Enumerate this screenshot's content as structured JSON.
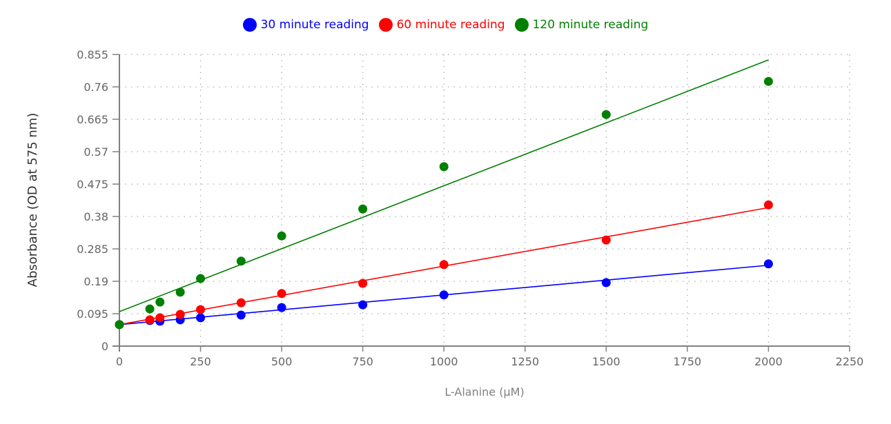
{
  "chart_data": {
    "type": "scatter",
    "title": "",
    "xlabel": "L-Alanine (µM)",
    "ylabel": "Absorbance (OD at 575 nm)",
    "xlim": [
      0,
      2250
    ],
    "ylim": [
      0,
      0.855
    ],
    "xticks": [
      0,
      250,
      500,
      750,
      1000,
      1250,
      1500,
      1750,
      2000,
      2250
    ],
    "yticks": [
      0,
      0.095,
      0.19,
      0.285,
      0.38,
      0.475,
      0.57,
      0.665,
      0.76,
      0.855
    ],
    "xtick_labels": [
      "0",
      "250",
      "500",
      "750",
      "1000",
      "1250",
      "1500",
      "1750",
      "2000",
      "2250"
    ],
    "ytick_labels": [
      "0",
      "0.095",
      "0.19",
      "0.285",
      "0.38",
      "0.475",
      "0.57",
      "0.665",
      "0.76",
      "0.855"
    ],
    "grid": true,
    "legend_position": "top",
    "x": [
      0,
      93.75,
      125,
      187.5,
      250,
      375,
      500,
      750,
      1000,
      1500,
      2000
    ],
    "series": [
      {
        "name": "30 minute reading",
        "color": "#0000ff",
        "values": [
          0.063,
          0.075,
          0.073,
          0.077,
          0.083,
          0.091,
          0.113,
          0.121,
          0.15,
          0.186,
          0.241
        ],
        "trendline": {
          "x": [
            0,
            2000
          ],
          "y": [
            0.063,
            0.237
          ]
        }
      },
      {
        "name": "60 minute reading",
        "color": "#ff0000",
        "values": [
          0.063,
          0.077,
          0.083,
          0.093,
          0.107,
          0.127,
          0.154,
          0.184,
          0.239,
          0.311,
          0.414
        ],
        "trendline": {
          "x": [
            0,
            2000
          ],
          "y": [
            0.063,
            0.406
          ]
        }
      },
      {
        "name": "120 minute reading",
        "color": "#008000",
        "values": [
          0.063,
          0.109,
          0.129,
          0.158,
          0.198,
          0.249,
          0.323,
          0.402,
          0.526,
          0.679,
          0.776
        ],
        "trendline": {
          "x": [
            0,
            2000
          ],
          "y": [
            0.101,
            0.839
          ]
        }
      }
    ]
  },
  "legend": {
    "items": [
      {
        "label": "30 minute reading",
        "color": "#0000ff"
      },
      {
        "label": "60 minute reading",
        "color": "#ff0000"
      },
      {
        "label": "120 minute reading",
        "color": "#008000"
      }
    ]
  },
  "axes": {
    "x_title": "L-Alanine (µM)",
    "y_title": "Absorbance (OD at 575 nm)"
  },
  "style": {
    "axis_color": "#808080",
    "grid_color": "#aaaaaa",
    "tick_label_color": "#666666",
    "axis_title_color": "#808080",
    "y_title_color": "#333333"
  }
}
